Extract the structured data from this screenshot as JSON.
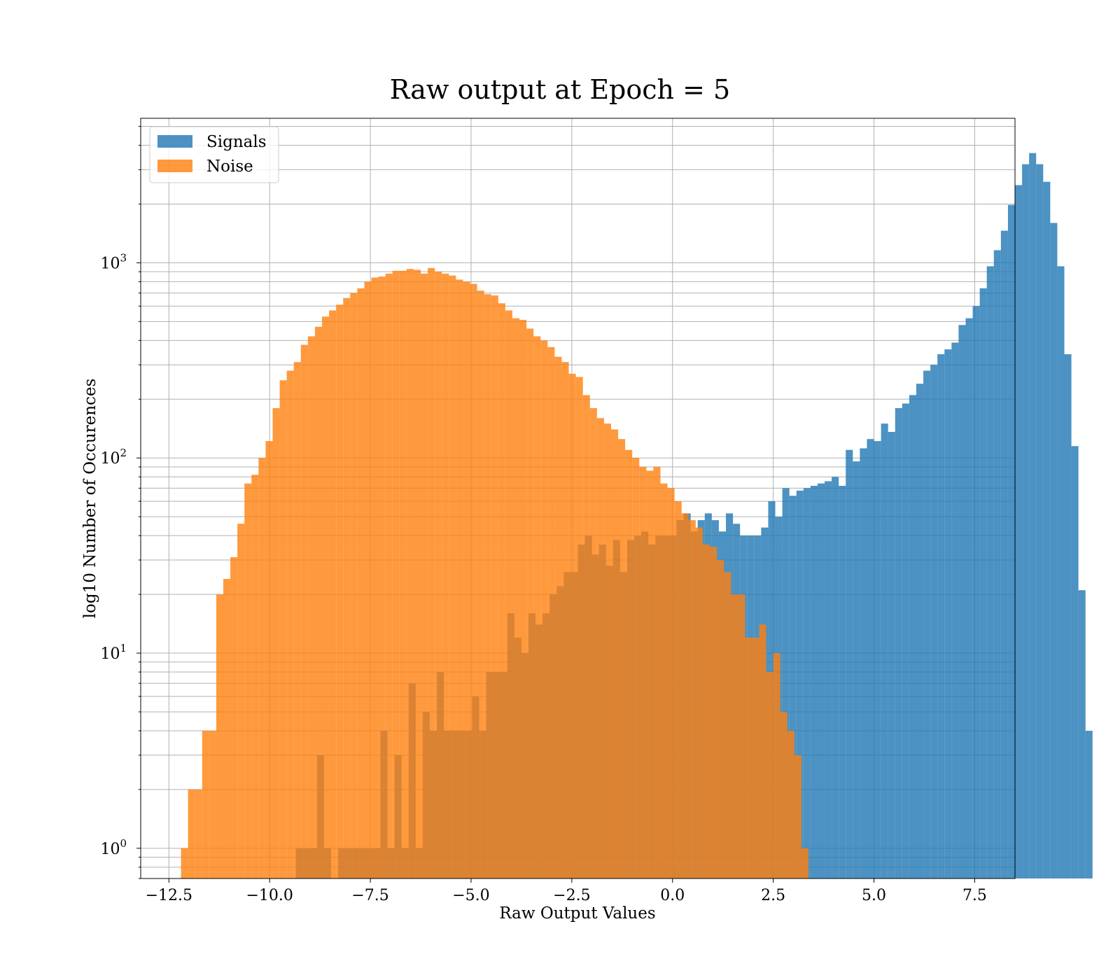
{
  "chart_data": {
    "type": "bar",
    "title": "Raw output at Epoch = 5",
    "xlabel": "Raw Output Values",
    "ylabel": "log10 Number of Occurences",
    "yscale": "log",
    "xlim": [
      -13.2,
      8.5
    ],
    "ylim": [
      0.7,
      5500
    ],
    "grid": true,
    "legend": "top-left",
    "x_ticks": [
      -12.5,
      -10.0,
      -7.5,
      -5.0,
      -2.5,
      0.0,
      2.5,
      5.0,
      7.5
    ],
    "x_tick_labels": [
      "−12.5",
      "−10.0",
      "−7.5",
      "−5.0",
      "−2.5",
      "0.0",
      "2.5",
      "5.0",
      "7.5"
    ],
    "y_ticks": [
      1,
      10,
      100,
      1000
    ],
    "y_tick_labels": [
      {
        "base": "10",
        "exp": "0"
      },
      {
        "base": "10",
        "exp": "1"
      },
      {
        "base": "10",
        "exp": "2"
      },
      {
        "base": "10",
        "exp": "3"
      }
    ],
    "series": [
      {
        "name": "Signals",
        "color": "#1f77b4",
        "opacity": 0.8,
        "bin_start": -9.35,
        "bin_width": 0.175,
        "counts": [
          1,
          1,
          1,
          3,
          1,
          0,
          1,
          1,
          1,
          1,
          1,
          1,
          4,
          1,
          3,
          1,
          7,
          1,
          5,
          4,
          8,
          4,
          4,
          4,
          4,
          6,
          4,
          8,
          8,
          8,
          16,
          12,
          10,
          16,
          14,
          16,
          20,
          22,
          26,
          26,
          36,
          40,
          32,
          36,
          28,
          38,
          26,
          38,
          40,
          42,
          36,
          40,
          40,
          40,
          48,
          52,
          42,
          48,
          52,
          48,
          42,
          52,
          46,
          40,
          40,
          40,
          44,
          60,
          50,
          70,
          64,
          68,
          70,
          72,
          74,
          76,
          80,
          72,
          110,
          96,
          112,
          125,
          122,
          150,
          136,
          180,
          190,
          210,
          240,
          280,
          300,
          340,
          360,
          390,
          480,
          520,
          600,
          740,
          960,
          1160,
          1460,
          1980,
          2500,
          3200,
          3650,
          3200,
          2600,
          1600,
          960,
          340,
          115,
          21,
          4
        ],
        "note_counts_for_bins_starting_at_bin_start": true
      },
      {
        "name": "Noise",
        "color": "#ff7f0e",
        "opacity": 0.8,
        "bin_start": -12.2,
        "bin_width": 0.175,
        "counts": [
          1,
          2,
          2,
          4,
          4,
          20,
          24,
          31,
          46,
          74,
          82,
          100,
          122,
          180,
          250,
          280,
          310,
          380,
          420,
          470,
          530,
          570,
          610,
          660,
          700,
          740,
          800,
          840,
          850,
          880,
          910,
          910,
          930,
          920,
          880,
          940,
          900,
          880,
          860,
          820,
          800,
          780,
          720,
          690,
          680,
          620,
          570,
          520,
          510,
          460,
          420,
          400,
          370,
          330,
          310,
          270,
          260,
          210,
          180,
          160,
          150,
          140,
          125,
          110,
          100,
          90,
          86,
          90,
          74,
          70,
          60,
          52,
          48,
          44,
          36,
          35,
          30,
          26,
          20,
          20,
          12,
          12,
          14,
          8,
          10,
          5,
          4,
          3,
          1
        ]
      }
    ]
  }
}
